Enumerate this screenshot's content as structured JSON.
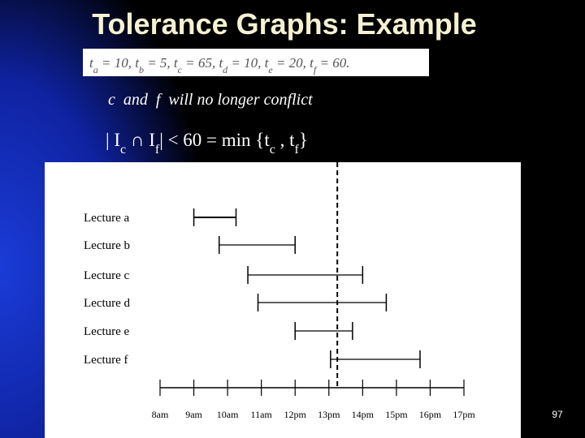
{
  "title": "Tolerance Graphs: Example",
  "formula": [
    {
      "text": "t"
    },
    {
      "sub": "a"
    },
    {
      "text": " = 10, t"
    },
    {
      "sub": "b"
    },
    {
      "text": " = 5, t"
    },
    {
      "sub": "c"
    },
    {
      "text": " = 65, t"
    },
    {
      "sub": "d"
    },
    {
      "text": " = 10, t"
    },
    {
      "sub": "e"
    },
    {
      "text": " = 20, t"
    },
    {
      "sub": "f"
    },
    {
      "text": " = 60."
    }
  ],
  "note": "c  and  f  will no longer conflict",
  "inequality": [
    {
      "text": "| I"
    },
    {
      "sub": "c"
    },
    {
      "text": " ∩ I"
    },
    {
      "sub": "f"
    },
    {
      "text": "| < 60 = min {t"
    },
    {
      "sub": "c"
    },
    {
      "text": " , t"
    },
    {
      "sub": "f"
    },
    {
      "text": "}"
    }
  ],
  "timeline": {
    "ticks": [
      {
        "value": 8,
        "label": "8am"
      },
      {
        "value": 9,
        "label": "9am"
      },
      {
        "value": 10,
        "label": "10am"
      },
      {
        "value": 11,
        "label": "11am"
      },
      {
        "value": 12,
        "label": "12pm"
      },
      {
        "value": 13,
        "label": "13pm"
      },
      {
        "value": 14,
        "label": "14pm"
      },
      {
        "value": 15,
        "label": "15pm"
      },
      {
        "value": 16,
        "label": "16pm"
      },
      {
        "value": 17,
        "label": "17pm"
      }
    ],
    "lectures": [
      {
        "label": "Lecture a",
        "start": 9,
        "end": 10.25
      },
      {
        "label": "Lecture b",
        "start": 9.75,
        "end": 12
      },
      {
        "label": "Lecture c",
        "start": 10.6,
        "end": 14
      },
      {
        "label": "Lecture d",
        "start": 10.9,
        "end": 14.7
      },
      {
        "label": "Lecture e",
        "start": 12,
        "end": 13.7
      },
      {
        "label": "Lecture f",
        "start": 13.05,
        "end": 15.7
      }
    ],
    "marker": 13.25
  },
  "page_number": "97"
}
